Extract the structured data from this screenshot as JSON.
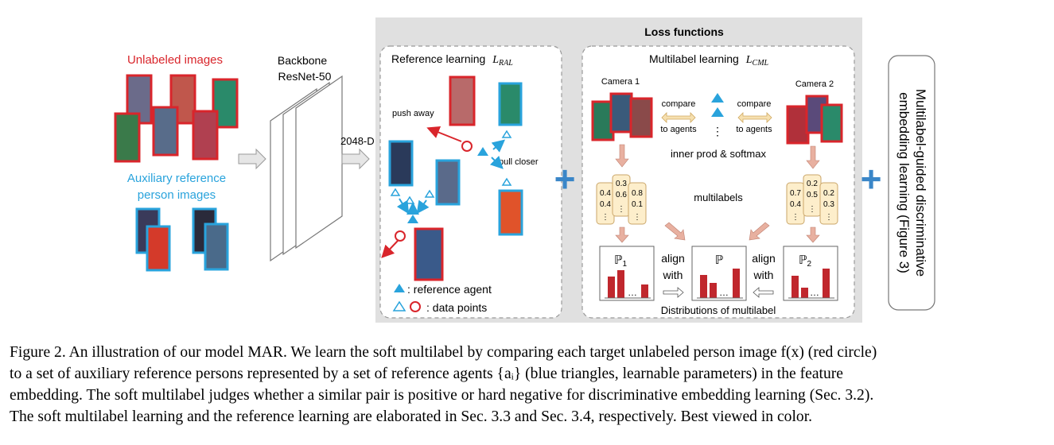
{
  "left_panel": {
    "unlabeled_title": "Unlabeled images",
    "aux_title_line1": "Auxiliary reference",
    "aux_title_line2": "person images",
    "backbone_line1": "Backbone",
    "backbone_line2": "ResNet-50",
    "feature_dim": "2048-D"
  },
  "loss_panel": {
    "title": "Loss functions",
    "reference_learning": {
      "title": "Reference learning",
      "loss_symbol": "L",
      "loss_subscript": "RAL",
      "push_label": "push away",
      "pull_label": "pull closer",
      "legend_agent": ": reference agent",
      "legend_points": ": data points"
    },
    "multilabel_learning": {
      "title": "Multilabel learning",
      "loss_symbol": "L",
      "loss_subscript": "CML",
      "camera1": "Camera 1",
      "camera2": "Camera 2",
      "compare_label": "compare",
      "to_agents_label": "to agents",
      "dots": "⋮",
      "inner_prod": "inner prod & softmax",
      "multilabels_label": "multilabels",
      "cam1_labels": [
        [
          "0.4",
          "0.4",
          "⋮"
        ],
        [
          "0.3",
          "0.6",
          "⋮"
        ],
        [
          "0.8",
          "0.1",
          "⋮"
        ]
      ],
      "cam2_labels": [
        [
          "0.7",
          "0.4",
          "⋮"
        ],
        [
          "0.2",
          "0.5",
          "⋮"
        ],
        [
          "0.2",
          "0.3",
          "⋮"
        ]
      ],
      "dist1_label": "ℙ",
      "dist1_sub": "1",
      "dist_mid_label": "ℙ",
      "dist2_label": "ℙ",
      "dist2_sub": "2",
      "align_label": "align",
      "with_label": "with",
      "bar_dots": "…",
      "distributions_caption": "Distributions of multilabel"
    }
  },
  "right_panel": {
    "line1": "Multilabel-guided discriminative",
    "line2": "embedding learning (Figure 3)"
  },
  "plus_sign": "+",
  "caption": {
    "line1": "Figure 2. An illustration of our model MAR. We learn the soft multilabel by comparing each target unlabeled person image f(x) (red circle)",
    "line2": "to a set of auxiliary reference persons represented by a set of reference agents {aᵢ} (blue triangles, learnable parameters) in the feature",
    "line3": "embedding. The soft multilabel judges whether a similar pair is positive or hard negative for discriminative embedding learning (Sec. 3.2).",
    "line4": "The soft multilabel learning and the reference learning are elaborated in Sec. 3.3 and Sec. 3.4, respectively. Best viewed in color."
  },
  "colors": {
    "red": "#d9252b",
    "blue": "#29a3dc",
    "gray_panel": "#e0e0e0",
    "box_fill": "#fdeecb",
    "bar_red": "#c0272d",
    "plus_blue": "#3a86c8"
  }
}
